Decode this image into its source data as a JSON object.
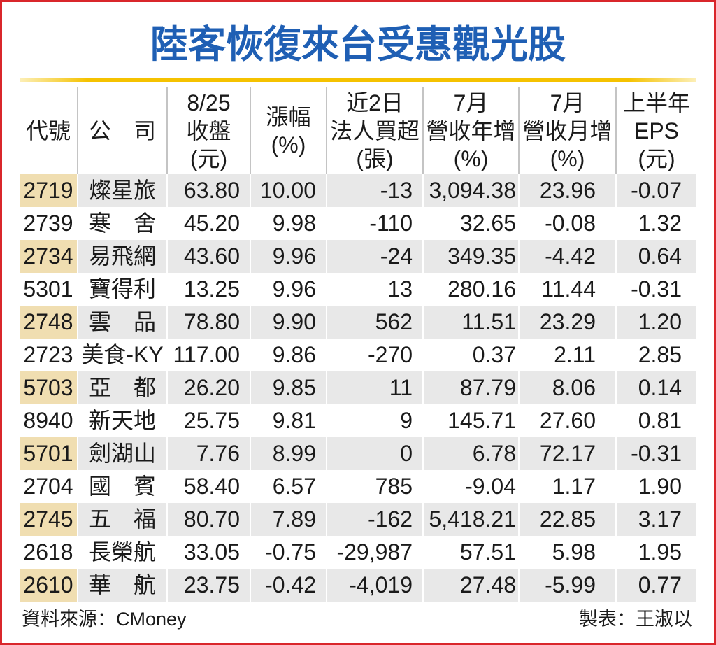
{
  "colors": {
    "title": "#1f5fb4",
    "title_rule": "#f5c200",
    "row_shade": "#e8e8e8",
    "code_shade": "#f0deb1",
    "frame": "#d9262b",
    "text": "#1a1a1a",
    "header_rule": "#c4c4c4"
  },
  "chart_data": {
    "type": "table",
    "title": "陸客恢復來台受惠觀光股",
    "columns": [
      [
        "代號"
      ],
      [
        "公　司"
      ],
      [
        "8/25",
        "收盤",
        "(元)"
      ],
      [
        "漲幅",
        "(%)"
      ],
      [
        "近2日",
        "法人買超",
        "(張)"
      ],
      [
        "7月",
        "營收年增",
        "(%)"
      ],
      [
        "7月",
        "營收月增",
        "(%)"
      ],
      [
        "上半年",
        "EPS",
        "(元)"
      ]
    ],
    "rows": [
      [
        "2719",
        "燦星旅",
        "63.80",
        "10.00",
        "-13",
        "3,094.38",
        "23.96",
        "-0.07"
      ],
      [
        "2739",
        "寒　舍",
        "45.20",
        "9.98",
        "-110",
        "32.65",
        "-0.08",
        "1.32"
      ],
      [
        "2734",
        "易飛網",
        "43.60",
        "9.96",
        "-24",
        "349.35",
        "-4.42",
        "0.64"
      ],
      [
        "5301",
        "寶得利",
        "13.25",
        "9.96",
        "13",
        "280.16",
        "11.44",
        "-0.31"
      ],
      [
        "2748",
        "雲　品",
        "78.80",
        "9.90",
        "562",
        "11.51",
        "23.29",
        "1.20"
      ],
      [
        "2723",
        "美食-KY",
        "117.00",
        "9.86",
        "-270",
        "0.37",
        "2.11",
        "2.85"
      ],
      [
        "5703",
        "亞　都",
        "26.20",
        "9.85",
        "11",
        "87.79",
        "8.06",
        "0.14"
      ],
      [
        "8940",
        "新天地",
        "25.75",
        "9.81",
        "9",
        "145.71",
        "27.60",
        "0.81"
      ],
      [
        "5701",
        "劍湖山",
        "7.76",
        "8.99",
        "0",
        "6.78",
        "72.17",
        "-0.31"
      ],
      [
        "2704",
        "國　賓",
        "58.40",
        "6.57",
        "785",
        "-9.04",
        "1.17",
        "1.90"
      ],
      [
        "2745",
        "五　福",
        "80.70",
        "7.89",
        "-162",
        "5,418.21",
        "22.85",
        "3.17"
      ],
      [
        "2618",
        "長榮航",
        "33.05",
        "-0.75",
        "-29,987",
        "57.51",
        "5.98",
        "1.95"
      ],
      [
        "2610",
        "華　航",
        "23.75",
        "-0.42",
        "-4,019",
        "27.48",
        "-5.99",
        "0.77"
      ]
    ]
  },
  "footer": {
    "source": "資料來源：CMoney",
    "credit": "製表：王淑以"
  }
}
